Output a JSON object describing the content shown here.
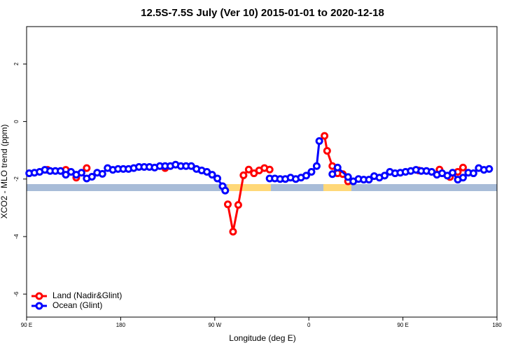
{
  "chart_data": {
    "type": "line",
    "title": "12.5S-7.5S July (Ver 10)   2015-01-01 to 2020-12-18",
    "x_label": "Longitude (deg E)",
    "y_label": "XCO2 - MLO trend (ppm)",
    "xlim": [
      90,
      540
    ],
    "xticks": [
      {
        "value": 90,
        "label": "90 E"
      },
      180,
      {
        "value": 270,
        "label": "90 W"
      },
      {
        "value": 360,
        "label": "0"
      },
      {
        "value": 450,
        "label": "90 E"
      },
      {
        "value": 540,
        "label": "180"
      }
    ],
    "ylim": [
      -6.8,
      3.3
    ],
    "yticks": [
      2,
      0,
      -2,
      -4,
      -6
    ],
    "legend": "bottom-left",
    "series": [
      {
        "name": "Land (Nadir&Glint)",
        "color": "#ff0000",
        "x": [
          110,
          null,
          127.5,
          null,
          137.5,
          null,
          147.5,
          null,
          222.5,
          null,
          282.5,
          287.5,
          292.5,
          297.5,
          302.5,
          307.5,
          312.5,
          317.5,
          322.5,
          null,
          375,
          377.5,
          382.5,
          387.5,
          392.5,
          397.5,
          null,
          465,
          null,
          485,
          null,
          495,
          502.5,
          507.5
        ],
        "values": [
          -1.68,
          null,
          -1.68,
          null,
          -1.95,
          null,
          -1.62,
          null,
          -1.62,
          null,
          -2.88,
          -3.83,
          -2.9,
          -1.87,
          -1.67,
          -1.8,
          -1.7,
          -1.62,
          -1.67,
          null,
          -0.5,
          -1.02,
          -1.55,
          -1.8,
          -1.83,
          -2.08,
          null,
          -1.7,
          null,
          -1.67,
          null,
          -1.93,
          -1.75,
          -1.6
        ]
      },
      {
        "name": "Ocean (Glint)",
        "color": "#0000ff",
        "x": [
          92.5,
          97.5,
          102.5,
          107.5,
          112.5,
          117.5,
          122.5,
          127.5,
          132.5,
          137.5,
          142.5,
          147.5,
          152.5,
          157.5,
          162.5,
          167.5,
          172.5,
          177.5,
          182.5,
          187.5,
          192.5,
          197.5,
          202.5,
          207.5,
          212.5,
          217.5,
          222.5,
          227.5,
          232.5,
          237.5,
          242.5,
          247.5,
          252.5,
          257.5,
          262.5,
          267.5,
          272.5,
          277.5,
          280,
          null,
          322.5,
          327.5,
          332.5,
          337.5,
          342.5,
          347.5,
          352.5,
          357.5,
          362.5,
          367.5,
          370,
          null,
          382.5,
          387.5,
          397.5,
          402.5,
          407.5,
          412.5,
          417.5,
          422.5,
          427.5,
          432.5,
          437.5,
          442.5,
          447.5,
          452.5,
          457.5,
          462.5,
          467.5,
          472.5,
          477.5,
          482.5,
          487.5,
          492.5,
          497.5,
          502.5,
          507.5,
          512.5,
          517.5,
          522.5,
          527.5,
          532.5
        ],
        "values": [
          -1.8,
          -1.78,
          -1.75,
          -1.68,
          -1.72,
          -1.72,
          -1.72,
          -1.85,
          -1.75,
          -1.85,
          -1.78,
          -1.98,
          -1.92,
          -1.78,
          -1.82,
          -1.62,
          -1.68,
          -1.65,
          -1.65,
          -1.65,
          -1.62,
          -1.58,
          -1.58,
          -1.58,
          -1.6,
          -1.55,
          -1.55,
          -1.55,
          -1.5,
          -1.55,
          -1.55,
          -1.55,
          -1.65,
          -1.7,
          -1.75,
          -1.85,
          -1.98,
          -2.25,
          -2.4,
          null,
          -1.98,
          -1.98,
          -2.0,
          -2.0,
          -1.95,
          -2.0,
          -1.95,
          -1.88,
          -1.75,
          -1.55,
          -0.68,
          null,
          -1.83,
          -1.6,
          -1.93,
          -2.08,
          -2.0,
          -2.02,
          -2.02,
          -1.9,
          -1.95,
          -1.88,
          -1.75,
          -1.8,
          -1.78,
          -1.75,
          -1.72,
          -1.68,
          -1.72,
          -1.72,
          -1.75,
          -1.85,
          -1.8,
          -1.88,
          -1.78,
          -2.02,
          -1.95,
          -1.78,
          -1.8,
          -1.62,
          -1.68,
          -1.65
        ]
      }
    ]
  }
}
